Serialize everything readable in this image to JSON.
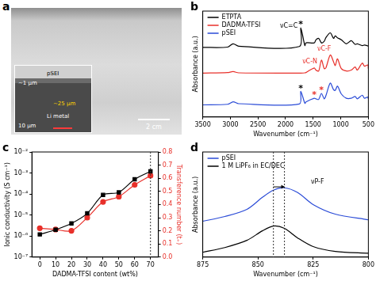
{
  "photo": {
    "panel_label": "a",
    "scale_bar": "2 cm",
    "inset": {
      "layer": "pSEI",
      "layer_thickness": "~1 μm",
      "metal_thickness": "~25 μm",
      "metal": "Li metal",
      "scale_bar": "10 μm"
    }
  },
  "chart_data": [
    {
      "panel_label": "b",
      "type": "line",
      "x_label": "Wavenumber (cm⁻¹)",
      "y_label": "Absorbance (a.u.)",
      "x": [
        3500,
        3050,
        2950,
        2850,
        1750,
        1725,
        1650,
        1630,
        1480,
        1450,
        1400,
        1350,
        1300,
        1270,
        1190,
        1130,
        1100,
        1060,
        990,
        900,
        810,
        740,
        700,
        610,
        570,
        510,
        500
      ],
      "xlim": [
        3500,
        500
      ],
      "xticks": [
        3500,
        3000,
        2500,
        2000,
        1500,
        1000,
        500
      ],
      "ylim": [
        0,
        3.5
      ],
      "tick_labels": "x",
      "grid": false,
      "legend": "upper left",
      "series": [
        {
          "name": "ETPTA",
          "color": "#000000",
          "values": [
            2.3,
            2.31,
            2.42,
            2.34,
            2.33,
            2.95,
            2.36,
            2.45,
            2.45,
            2.55,
            2.6,
            2.45,
            2.5,
            2.62,
            2.78,
            2.6,
            2.68,
            2.62,
            2.55,
            2.42,
            2.52,
            2.4,
            2.42,
            2.36,
            2.38,
            2.35,
            2.34
          ]
        },
        {
          "name": "DADMA-TFSI",
          "color": "#e8302a",
          "values": [
            1.45,
            1.47,
            1.5,
            1.46,
            1.45,
            1.45,
            1.46,
            1.47,
            1.62,
            1.55,
            1.52,
            1.88,
            1.6,
            1.62,
            2.05,
            1.82,
            1.7,
            1.92,
            1.6,
            1.52,
            1.55,
            1.65,
            1.55,
            1.78,
            1.68,
            1.72,
            1.6
          ]
        },
        {
          "name": "pSEI",
          "color": "#2a4bd7",
          "values": [
            0.4,
            0.42,
            0.5,
            0.44,
            0.43,
            0.85,
            0.45,
            0.5,
            0.62,
            0.6,
            0.58,
            0.78,
            0.6,
            0.7,
            1.12,
            0.9,
            0.88,
            1.02,
            0.76,
            0.62,
            0.62,
            0.68,
            0.6,
            0.72,
            0.62,
            0.66,
            0.6
          ]
        }
      ],
      "annotations": [
        {
          "text": "νC=C",
          "color": "#000000"
        },
        {
          "text": "*",
          "color": "#000000"
        },
        {
          "text": "νC-F",
          "color": "#e8302a"
        },
        {
          "text": "νC-N",
          "color": "#e8302a"
        },
        {
          "text": "*",
          "color": "#000000"
        },
        {
          "text": "*",
          "color": "#e8302a"
        },
        {
          "text": "*",
          "color": "#e8302a"
        }
      ]
    },
    {
      "panel_label": "c",
      "type": "line",
      "x_label": "DADMA-TFSI content (wt%)",
      "y_label": "Ionic conductivity (S cm⁻¹)",
      "y2_label": "Transference number (t₊)",
      "x": [
        0,
        10,
        20,
        30,
        40,
        50,
        60,
        70
      ],
      "xlim": [
        -5,
        75
      ],
      "xticks": [
        0,
        10,
        20,
        30,
        40,
        50,
        60,
        70
      ],
      "log": "y",
      "ylim": [
        1e-07,
        0.01
      ],
      "yticks": [
        {
          "value": 1e-07,
          "label": "10⁻⁷"
        },
        {
          "value": 1e-06,
          "label": "10⁻⁶"
        },
        {
          "value": 1e-05,
          "label": "10⁻⁵"
        },
        {
          "value": 0.0001,
          "label": "10⁻⁴"
        },
        {
          "value": 0.001,
          "label": "10⁻³"
        },
        {
          "value": 0.01,
          "label": "10⁻²"
        }
      ],
      "y2lim": [
        0,
        0.8
      ],
      "y2ticks": [
        {
          "value": 0,
          "label": "0.0"
        },
        0.1,
        0.2,
        0.3,
        0.4,
        0.5,
        0.6,
        0.7,
        0.8
      ],
      "grid": false,
      "vlines": [
        70
      ],
      "series": [
        {
          "color": "#000000",
          "marker": "square",
          "values": [
            1.2e-06,
            2e-06,
            4e-06,
            1.2e-05,
            9e-05,
            0.00012,
            0.0005,
            0.0012
          ]
        },
        {
          "color": "#e8302a",
          "marker": "circle",
          "axis": "y2",
          "values": [
            0.22,
            0.21,
            0.2,
            0.3,
            0.42,
            0.46,
            0.55,
            0.62
          ]
        }
      ]
    },
    {
      "panel_label": "d",
      "type": "line",
      "x_label": "Wavenumber (cm⁻¹)",
      "y_label": "Absorbance (a.u.)",
      "x": [
        875,
        865,
        855,
        848,
        843,
        838,
        832,
        825,
        815,
        800
      ],
      "xlim": [
        875,
        800
      ],
      "xticks": [
        875,
        850,
        825,
        800
      ],
      "ylim": [
        0,
        2.2
      ],
      "tick_labels": "x",
      "grid": false,
      "legend": "upper left",
      "vlines": [
        843,
        838
      ],
      "series": [
        {
          "name": "pSEI",
          "color": "#2a4bd7",
          "values": [
            0.75,
            0.85,
            1.0,
            1.25,
            1.4,
            1.45,
            1.35,
            1.1,
            0.9,
            0.78
          ]
        },
        {
          "name": "1 M LiPF₆ in EC/DEC",
          "color": "#000000",
          "values": [
            0.1,
            0.2,
            0.35,
            0.55,
            0.65,
            0.6,
            0.4,
            0.22,
            0.12,
            0.08
          ]
        }
      ],
      "annotations": [
        {
          "text": "νP-F",
          "color": "#000000"
        }
      ]
    }
  ]
}
